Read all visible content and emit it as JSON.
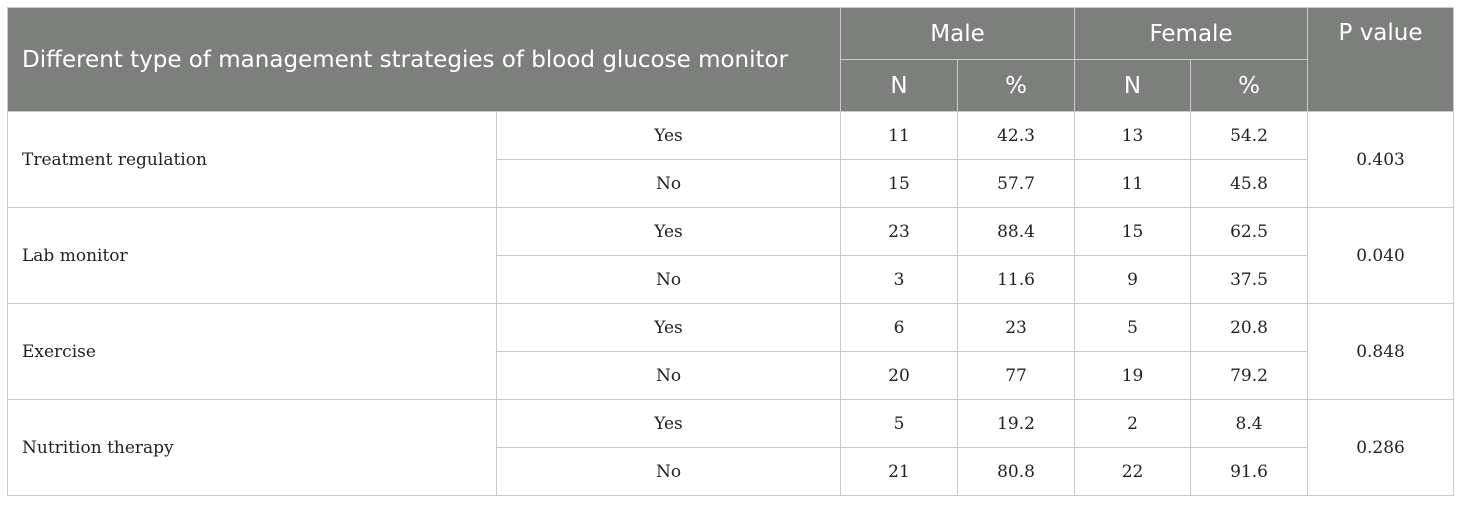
{
  "header": {
    "title": "Different type of management strategies of blood glucose monitor",
    "male": "Male",
    "female": "Female",
    "p_value": "P value",
    "n": "N",
    "pct": "%"
  },
  "rows": [
    {
      "strategy": "Treatment regulation",
      "p": "0.403",
      "yes": {
        "label": "Yes",
        "male_n": "11",
        "male_pct": "42.3",
        "female_n": "13",
        "female_pct": "54.2"
      },
      "no": {
        "label": "No",
        "male_n": "15",
        "male_pct": "57.7",
        "female_n": "11",
        "female_pct": "45.8"
      }
    },
    {
      "strategy": "Lab monitor",
      "p": "0.040",
      "yes": {
        "label": "Yes",
        "male_n": "23",
        "male_pct": "88.4",
        "female_n": "15",
        "female_pct": "62.5"
      },
      "no": {
        "label": "No",
        "male_n": "3",
        "male_pct": "11.6",
        "female_n": "9",
        "female_pct": "37.5"
      }
    },
    {
      "strategy": "Exercise",
      "p": "0.848",
      "yes": {
        "label": "Yes",
        "male_n": "6",
        "male_pct": "23",
        "female_n": "5",
        "female_pct": "20.8"
      },
      "no": {
        "label": "No",
        "male_n": "20",
        "male_pct": "77",
        "female_n": "19",
        "female_pct": "79.2"
      }
    },
    {
      "strategy": "Nutrition therapy",
      "p": "0.286",
      "yes": {
        "label": "Yes",
        "male_n": "5",
        "male_pct": "19.2",
        "female_n": "2",
        "female_pct": "8.4"
      },
      "no": {
        "label": "No",
        "male_n": "21",
        "male_pct": "80.8",
        "female_n": "22",
        "female_pct": "91.6"
      }
    }
  ]
}
